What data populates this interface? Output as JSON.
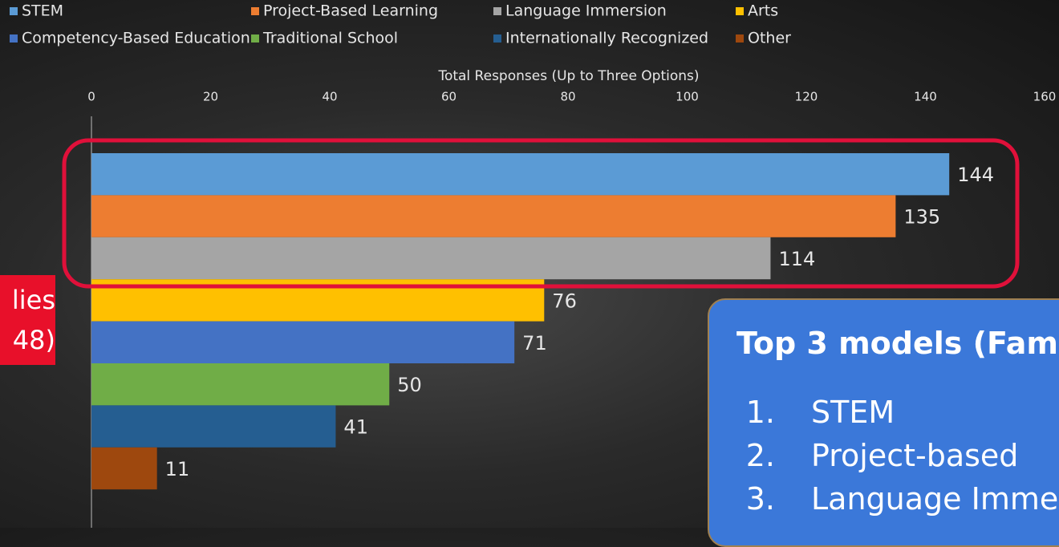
{
  "chart_data": {
    "type": "bar",
    "xlabel": "Total Responses (Up to Three Options)",
    "categories": [
      "STEM",
      "Project-Based Learning",
      "Language Immersion",
      "Arts",
      "Competency-Based Education",
      "Traditional School",
      "Internationally Recognized",
      "Other"
    ],
    "values": [
      144,
      135,
      114,
      76,
      71,
      50,
      41,
      11
    ],
    "colors": [
      "#5b9bd5",
      "#ed7d31",
      "#a5a5a5",
      "#ffc000",
      "#4472c4",
      "#70ad47",
      "#255e91",
      "#9e480e"
    ],
    "xlim": [
      0,
      160
    ],
    "xticks": [
      0,
      20,
      40,
      60,
      80,
      100,
      120,
      140,
      160
    ]
  },
  "side_label": {
    "lines": [
      "lies",
      "48)"
    ]
  },
  "callout": {
    "title": "Top 3 models (Fam",
    "items": [
      {
        "number": "1.",
        "text": "STEM"
      },
      {
        "number": "2.",
        "text": "Project-based"
      },
      {
        "number": "3.",
        "text": "Language Imme"
      }
    ]
  }
}
